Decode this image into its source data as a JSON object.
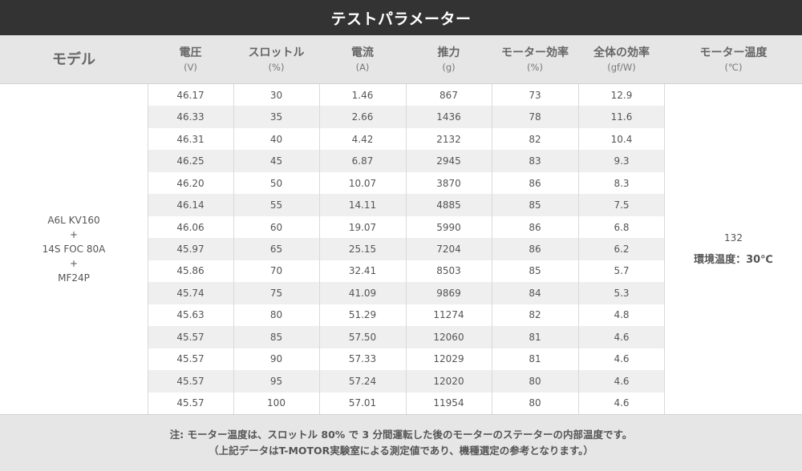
{
  "title": "テストパラメーター",
  "header": {
    "model": "モデル",
    "columns": [
      {
        "name": "電圧",
        "unit": "(V)"
      },
      {
        "name": "スロットル",
        "unit": "(%)"
      },
      {
        "name": "電流",
        "unit": "(A)"
      },
      {
        "name": "推力",
        "unit": "(g)"
      },
      {
        "name": "モーター効率",
        "unit": "(%)"
      },
      {
        "name": "全体の効率",
        "unit": "(gf/W)"
      },
      {
        "name": "モーター温度",
        "unit": "(℃)"
      }
    ]
  },
  "model": {
    "line1": "A6L KV160",
    "plus1": "+",
    "line2": "14S FOC 80A",
    "plus2": "+",
    "line3": "MF24P"
  },
  "rows": [
    [
      "46.17",
      "30",
      "1.46",
      "867",
      "73",
      "12.9"
    ],
    [
      "46.33",
      "35",
      "2.66",
      "1436",
      "78",
      "11.6"
    ],
    [
      "46.31",
      "40",
      "4.42",
      "2132",
      "82",
      "10.4"
    ],
    [
      "46.25",
      "45",
      "6.87",
      "2945",
      "83",
      "9.3"
    ],
    [
      "46.20",
      "50",
      "10.07",
      "3870",
      "86",
      "8.3"
    ],
    [
      "46.14",
      "55",
      "14.11",
      "4885",
      "85",
      "7.5"
    ],
    [
      "46.06",
      "60",
      "19.07",
      "5990",
      "86",
      "6.8"
    ],
    [
      "45.97",
      "65",
      "25.15",
      "7204",
      "86",
      "6.2"
    ],
    [
      "45.86",
      "70",
      "32.41",
      "8503",
      "85",
      "5.7"
    ],
    [
      "45.74",
      "75",
      "41.09",
      "9869",
      "84",
      "5.3"
    ],
    [
      "45.63",
      "80",
      "51.29",
      "11274",
      "82",
      "4.8"
    ],
    [
      "45.57",
      "85",
      "57.50",
      "12060",
      "81",
      "4.6"
    ],
    [
      "45.57",
      "90",
      "57.33",
      "12029",
      "81",
      "4.6"
    ],
    [
      "45.57",
      "95",
      "57.24",
      "12020",
      "80",
      "4.6"
    ],
    [
      "45.57",
      "100",
      "57.01",
      "11954",
      "80",
      "4.6"
    ]
  ],
  "motor_temp": {
    "value": "132",
    "ambient": "環境温度：30℃"
  },
  "footer": {
    "line1": "注: モーター温度は、スロットル 80% で 3 分間運転した後のモーターのステーターの内部温度です。",
    "line2": "（上記データはT-MOTOR実験室による測定値であり、機種選定の参考となります。）"
  }
}
